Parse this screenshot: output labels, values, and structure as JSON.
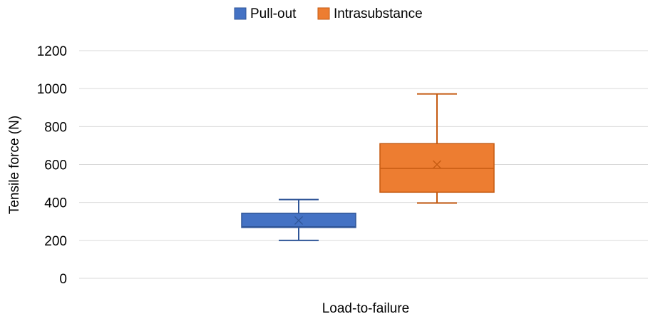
{
  "chart_data": {
    "type": "box",
    "title": "",
    "xlabel": "Load-to-failure",
    "ylabel": "Tensile force (N)",
    "ylim": [
      0,
      1200
    ],
    "yticks": [
      0,
      200,
      400,
      600,
      800,
      1000,
      1200
    ],
    "grid": true,
    "legend_position": "top",
    "series": [
      {
        "name": "Pull-out",
        "color": "#4472C4",
        "stroke": "#2F5597",
        "min": 200,
        "q1": 268,
        "median": 272,
        "q3": 343,
        "max": 415,
        "mean": 305
      },
      {
        "name": "Intrasubstance",
        "color": "#ED7D31",
        "stroke": "#C55A11",
        "min": 397,
        "q1": 454,
        "median": 580,
        "q3": 710,
        "max": 972,
        "mean": 600
      }
    ]
  }
}
